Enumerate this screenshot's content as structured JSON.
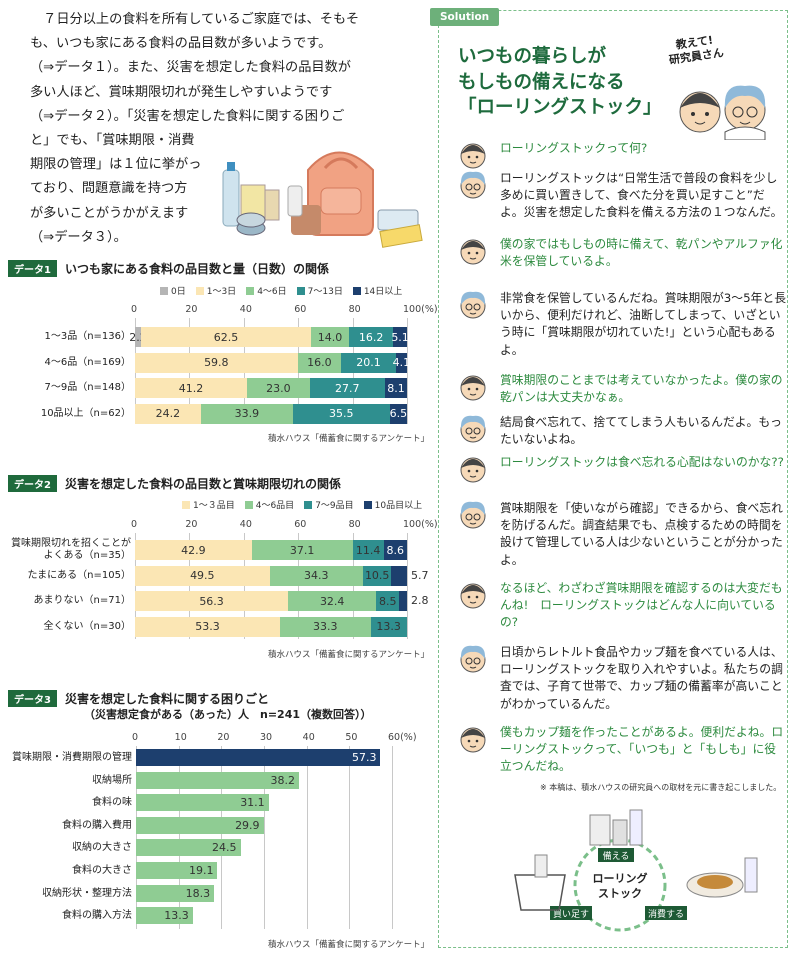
{
  "intro": {
    "lines": [
      "　７日分以上の食料を所有しているご家庭では、そもそ",
      "も、いつも家にある食料の品目数が多いようです。",
      "（⇒データ１）。また、災害を想定した食料の品目数が",
      "多い人ほど、賞味期限切れが発生しやすいようです",
      "（⇒データ２）。「災害を想定した食料に関する困りご",
      "と」でも、「賞味期限・消費",
      "期限の管理」は１位に挙がっ",
      "ており、問題意識を持つ方",
      "が多いことがうかがえます",
      "（⇒データ３）。"
    ]
  },
  "data1": {
    "tag": "データ1",
    "title": "いつも家にある食料の品目数と量（日数）の関係",
    "legend": [
      {
        "label": "0日",
        "color": "#b5b5b5"
      },
      {
        "label": "1〜3日",
        "color": "#fbe6b4"
      },
      {
        "label": "4〜6日",
        "color": "#8fcc93"
      },
      {
        "label": "7〜13日",
        "color": "#2f8f8f"
      },
      {
        "label": "14日以上",
        "color": "#1d3f6e"
      }
    ],
    "ticks": [
      "0",
      "20",
      "40",
      "60",
      "80",
      "100(%)"
    ],
    "source": "積水ハウス「備蓄食に関するアンケート」"
  },
  "data2": {
    "tag": "データ2",
    "title": "災害を想定した食料の品目数と賞味期限切れの関係",
    "legend": [
      {
        "label": "1〜３品目",
        "color": "#fbe6b4"
      },
      {
        "label": "4〜6品目",
        "color": "#8fcc93"
      },
      {
        "label": "7〜9品目",
        "color": "#2f8f8f"
      },
      {
        "label": "10品目以上",
        "color": "#1d3f6e"
      }
    ],
    "ticks": [
      "0",
      "20",
      "40",
      "60",
      "80",
      "100(%)"
    ],
    "source": "積水ハウス「備蓄食に関するアンケート」"
  },
  "data3": {
    "tag": "データ3",
    "title": "災害を想定した食料に関する困りごと",
    "subtitle": "（災害想定食がある（あった）人　n=241（複数回答））",
    "ticks": [
      "0",
      "10",
      "20",
      "30",
      "40",
      "50",
      "60(%)"
    ],
    "source": "積水ハウス「備蓄食に関するアンケート」"
  },
  "chart_data": [
    {
      "type": "bar",
      "stacked": true,
      "orientation": "horizontal",
      "title": "いつも家にある食料の品目数と量（日数）の関係",
      "categories": [
        "1〜3品（n=136）",
        "4〜6品（n=169）",
        "7〜9品（n=148）",
        "10品以上（n=62）"
      ],
      "series": [
        {
          "name": "0日",
          "color": "#b5b5b5",
          "values": [
            2.2,
            0,
            0,
            0
          ]
        },
        {
          "name": "1〜3日",
          "color": "#fbe6b4",
          "values": [
            62.5,
            59.8,
            41.2,
            24.2
          ]
        },
        {
          "name": "4〜6日",
          "color": "#8fcc93",
          "values": [
            14.0,
            16.0,
            23.0,
            33.9
          ]
        },
        {
          "name": "7〜13日",
          "color": "#2f8f8f",
          "values": [
            16.2,
            20.1,
            27.7,
            35.5
          ]
        },
        {
          "name": "14日以上",
          "color": "#1d3f6e",
          "values": [
            5.1,
            4.1,
            8.1,
            6.5
          ]
        }
      ],
      "xlim": [
        0,
        100
      ]
    },
    {
      "type": "bar",
      "stacked": true,
      "orientation": "horizontal",
      "title": "災害を想定した食料の品目数と賞味期限切れの関係",
      "categories": [
        "賞味期限切れを招くことが\nよくある（n=35）",
        "たまにある（n=105）",
        "あまりない（n=71）",
        "全くない（n=30）"
      ],
      "series": [
        {
          "name": "1〜３品目",
          "color": "#fbe6b4",
          "values": [
            42.9,
            49.5,
            56.3,
            53.3
          ]
        },
        {
          "name": "4〜6品目",
          "color": "#8fcc93",
          "values": [
            37.1,
            34.3,
            32.4,
            33.3
          ]
        },
        {
          "name": "7〜9品目",
          "color": "#2f8f8f",
          "values": [
            11.4,
            10.5,
            8.5,
            13.3
          ]
        },
        {
          "name": "10品目以上",
          "color": "#1d3f6e",
          "values": [
            8.6,
            5.7,
            2.8,
            0
          ]
        }
      ],
      "xlim": [
        0,
        100
      ]
    },
    {
      "type": "bar",
      "orientation": "horizontal",
      "title": "災害を想定した食料に関する困りごと",
      "categories": [
        "賞味期限・消費期限の管理",
        "収納場所",
        "食料の味",
        "食料の購入費用",
        "収納の大きさ",
        "食料の大きさ",
        "収納形状・整理方法",
        "食料の購入方法"
      ],
      "values": [
        57.3,
        38.2,
        31.1,
        29.9,
        24.5,
        19.1,
        18.3,
        13.3
      ],
      "colors": [
        "#1d3f6e",
        "#8fcc93",
        "#8fcc93",
        "#8fcc93",
        "#8fcc93",
        "#8fcc93",
        "#8fcc93",
        "#8fcc93"
      ],
      "xlim": [
        0,
        60
      ]
    }
  ],
  "solution": {
    "tag": "Solution",
    "title_lines": [
      "いつもの暮らしが",
      "もしもの備えになる",
      "「ローリングストック」"
    ],
    "ask_lines": [
      "教えて!",
      "研究員さん"
    ],
    "chat": [
      {
        "who": "kid",
        "text": "ローリングストックって何?"
      },
      {
        "who": "res",
        "text": "ローリングストックは“日常生活で普段の食料を少し多めに買い置きして、食べた分を買い足すこと”だよ。災害を想定した食料を備える方法の１つなんだ。"
      },
      {
        "who": "kid",
        "text": "僕の家ではもしもの時に備えて、乾パンやアルファ化米を保管しているよ。"
      },
      {
        "who": "res",
        "text": "非常食を保管しているんだね。賞味期限が3〜5年と長いから、便利だけれど、油断してしまって、いざという時に「賞味期限が切れていた!」という心配もあるよ。"
      },
      {
        "who": "kid",
        "text": "賞味期限のことまでは考えていなかったよ。僕の家の乾パンは大丈夫かなぁ。"
      },
      {
        "who": "res",
        "text": "結局食べ忘れて、捨ててしまう人もいるんだよ。もったいないよね。"
      },
      {
        "who": "kid",
        "text": "ローリングストックは食べ忘れる心配はないのかな??"
      },
      {
        "who": "res",
        "text": "賞味期限を「使いながら確認」できるから、食べ忘れを防げるんだ。調査結果でも、点検するための時間を設けて管理している人は少ないということが分かったよ。"
      },
      {
        "who": "kid",
        "text": "なるほど、わざわざ賞味期限を確認するのは大変だもんね!　ローリングストックはどんな人に向いているの?"
      },
      {
        "who": "res",
        "text": "日頃からレトルト食品やカップ麺を食べている人は、ローリングストックを取り入れやすいよ。私たちの調査では、子育て世帯で、カップ麺の備蓄率が高いことがわかっているんだ。"
      },
      {
        "who": "kid",
        "text": "僕もカップ麺を作ったことがあるよ。便利だよね。ローリングストックって、「いつも」と「もしも」に役立つんだね。"
      }
    ],
    "note": "※ 本稿は、積水ハウスの研究員への取材を元に書き起こしました。",
    "cycle": {
      "center": "ローリング\nストック",
      "steps": [
        "備える",
        "消費する",
        "買い足す"
      ]
    }
  }
}
